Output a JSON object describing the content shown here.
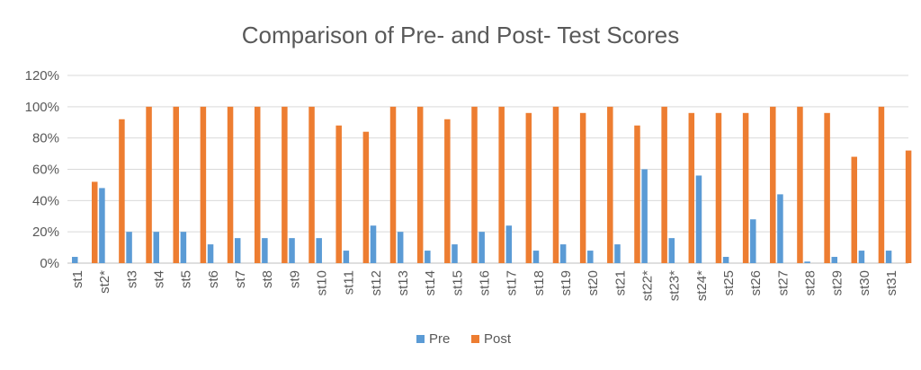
{
  "chart_data": {
    "type": "bar",
    "title": "Comparison of Pre- and Post- Test Scores",
    "xlabel": "",
    "ylabel": "",
    "ylim": [
      0,
      1.2
    ],
    "yticks": [
      {
        "value": 0,
        "label": "0%"
      },
      {
        "value": 0.2,
        "label": "20%"
      },
      {
        "value": 0.4,
        "label": "40%"
      },
      {
        "value": 0.6,
        "label": "60%"
      },
      {
        "value": 0.8,
        "label": "80%"
      },
      {
        "value": 1.0,
        "label": "100%"
      },
      {
        "value": 1.2,
        "label": "120%"
      }
    ],
    "grid": true,
    "legend_position": "bottom",
    "categories": [
      "st1",
      "st2*",
      "st3",
      "st4",
      "st5",
      "st6",
      "st7",
      "st8",
      "st9",
      "st10",
      "st11",
      "st12",
      "st13",
      "st14",
      "st15",
      "st16",
      "st17",
      "st18",
      "st19",
      "st20",
      "st21",
      "st22*",
      "st23*",
      "st24*",
      "st25",
      "st26",
      "st27",
      "st28",
      "st29",
      "st30",
      "st31"
    ],
    "series": [
      {
        "name": "Pre",
        "color": "#5b9bd5",
        "values": [
          0.04,
          0.48,
          0.2,
          0.2,
          0.2,
          0.12,
          0.16,
          0.16,
          0.16,
          0.16,
          0.08,
          0.24,
          0.2,
          0.08,
          0.12,
          0.2,
          0.24,
          0.08,
          0.12,
          0.08,
          0.12,
          0.6,
          0.16,
          0.56,
          0.04,
          0.28,
          0.44,
          0.01,
          0.04,
          0.08,
          0.08
        ]
      },
      {
        "name": "Post",
        "color": "#ed7d31",
        "values": [
          0.52,
          0.92,
          1.0,
          1.0,
          1.0,
          1.0,
          1.0,
          1.0,
          1.0,
          0.88,
          0.84,
          1.0,
          1.0,
          0.92,
          1.0,
          1.0,
          0.96,
          1.0,
          0.96,
          1.0,
          0.88,
          1.0,
          0.96,
          0.96,
          0.96,
          1.0,
          1.0,
          0.96,
          0.68,
          1.0,
          0.72
        ]
      }
    ]
  }
}
